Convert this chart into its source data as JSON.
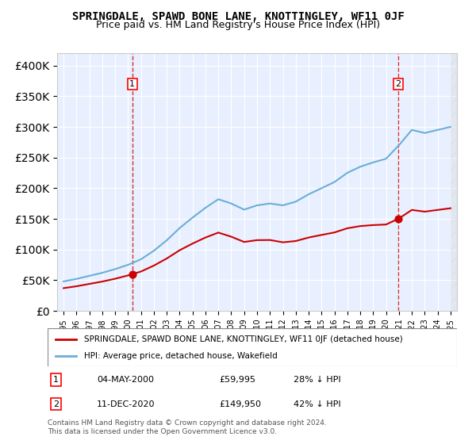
{
  "title": "SPRINGDALE, SPAWD BONE LANE, KNOTTINGLEY, WF11 0JF",
  "subtitle": "Price paid vs. HM Land Registry's House Price Index (HPI)",
  "hpi_years": [
    1995,
    1996,
    1997,
    1998,
    1999,
    2000,
    2001,
    2002,
    2003,
    2004,
    2005,
    2006,
    2007,
    2008,
    2009,
    2010,
    2011,
    2012,
    2013,
    2014,
    2015,
    2016,
    2017,
    2018,
    2019,
    2020,
    2021,
    2022,
    2023,
    2024,
    2025
  ],
  "hpi_values": [
    48000,
    52000,
    57000,
    62000,
    68000,
    75000,
    84000,
    98000,
    115000,
    135000,
    152000,
    168000,
    182000,
    175000,
    165000,
    172000,
    175000,
    172000,
    178000,
    190000,
    200000,
    210000,
    225000,
    235000,
    242000,
    248000,
    270000,
    295000,
    290000,
    295000,
    300000
  ],
  "sale_years": [
    2000.33,
    2020.95
  ],
  "sale_values": [
    59995,
    149950
  ],
  "hpi_color": "#6baed6",
  "sale_color": "#cc0000",
  "point1_label": "1",
  "point2_label": "2",
  "point1_date": "04-MAY-2000",
  "point1_price": "£59,995",
  "point1_hpi": "28% ↓ HPI",
  "point2_date": "11-DEC-2020",
  "point2_price": "£149,950",
  "point2_hpi": "42% ↓ HPI",
  "legend1": "SPRINGDALE, SPAWD BONE LANE, KNOTTINGLEY, WF11 0JF (detached house)",
  "legend2": "HPI: Average price, detached house, Wakefield",
  "footer": "Contains HM Land Registry data © Crown copyright and database right 2024.\nThis data is licensed under the Open Government Licence v3.0.",
  "ylim": [
    0,
    420000
  ],
  "xlim_left": 1994.5,
  "xlim_right": 2025.5,
  "bg_color": "#ddeeff",
  "plot_bg": "#e8f0ff"
}
